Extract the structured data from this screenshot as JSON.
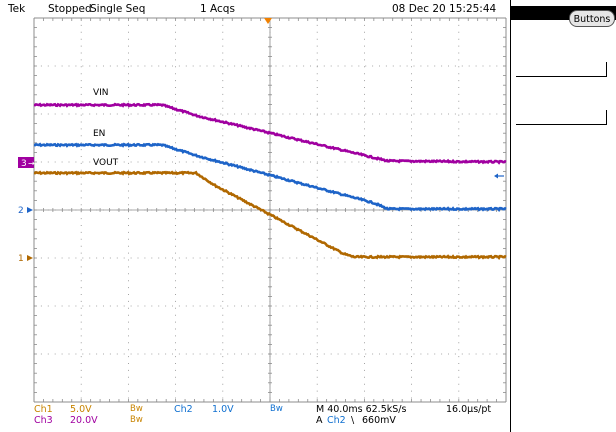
{
  "status_bar": {
    "brand": "Tek",
    "state": "Stopped",
    "mode": "Single Seq",
    "acqs": "1 Acqs",
    "datetime": "08 Dec 20 15:25:44"
  },
  "side_menu": {
    "buttons_label": "Buttons"
  },
  "traces": {
    "vin_label": "VIN",
    "en_label": "EN",
    "vout_label": "VOUT"
  },
  "channel_markers": {
    "ch3": "3",
    "ch2": "2",
    "ch1": "1"
  },
  "readout": {
    "ch1_name": "Ch1",
    "ch1_scale": "5.0V",
    "ch1_bw": "Bw",
    "ch2_name": "Ch2",
    "ch2_scale": "1.0V",
    "ch2_bw": "Bw",
    "ch3_name": "Ch3",
    "ch3_scale": "20.0V",
    "ch3_bw": "Bw",
    "timebase": "M 40.0ms 62.5kS/s",
    "resolution": "16.0µs/pt",
    "trigger_prefix": "A",
    "trigger_source": "Ch2",
    "trigger_slope": "\\",
    "trigger_level": "660mV"
  },
  "colors": {
    "ch1": "#b06800",
    "ch2": "#1e64c8",
    "ch3": "#a000a0",
    "grid": "#8c8c8c",
    "trigger_marker": "#f08000"
  }
}
